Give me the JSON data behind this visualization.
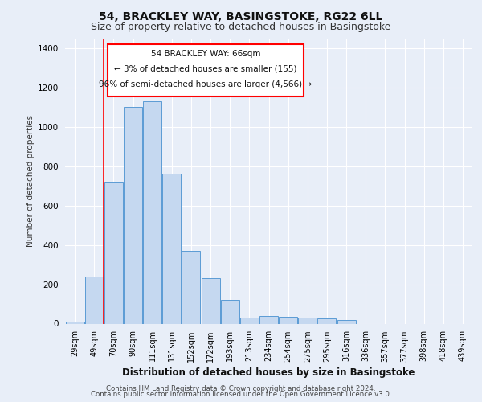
{
  "title1": "54, BRACKLEY WAY, BASINGSTOKE, RG22 6LL",
  "title2": "Size of property relative to detached houses in Basingstoke",
  "xlabel": "Distribution of detached houses by size in Basingstoke",
  "ylabel": "Number of detached properties",
  "footer1": "Contains HM Land Registry data © Crown copyright and database right 2024.",
  "footer2": "Contains public sector information licensed under the Open Government Licence v3.0.",
  "annotation_line1": "54 BRACKLEY WAY: 66sqm",
  "annotation_line2": "← 3% of detached houses are smaller (155)",
  "annotation_line3": "96% of semi-detached houses are larger (4,566) →",
  "bar_color": "#c5d8f0",
  "bar_edge_color": "#5b9bd5",
  "categories": [
    "29sqm",
    "49sqm",
    "70sqm",
    "90sqm",
    "111sqm",
    "131sqm",
    "152sqm",
    "172sqm",
    "193sqm",
    "213sqm",
    "234sqm",
    "254sqm",
    "275sqm",
    "295sqm",
    "316sqm",
    "336sqm",
    "357sqm",
    "377sqm",
    "398sqm",
    "418sqm",
    "439sqm"
  ],
  "values": [
    12,
    240,
    720,
    1100,
    1130,
    760,
    370,
    230,
    120,
    30,
    40,
    35,
    30,
    25,
    20,
    0,
    0,
    0,
    0,
    0,
    0
  ],
  "red_line_x": 1.5,
  "ylim": [
    0,
    1450
  ],
  "yticks": [
    0,
    200,
    400,
    600,
    800,
    1000,
    1200,
    1400
  ],
  "bg_color": "#e8eef8",
  "plot_bg_color": "#e8eef8",
  "grid_color": "#ffffff",
  "title1_fontsize": 10,
  "title2_fontsize": 9
}
